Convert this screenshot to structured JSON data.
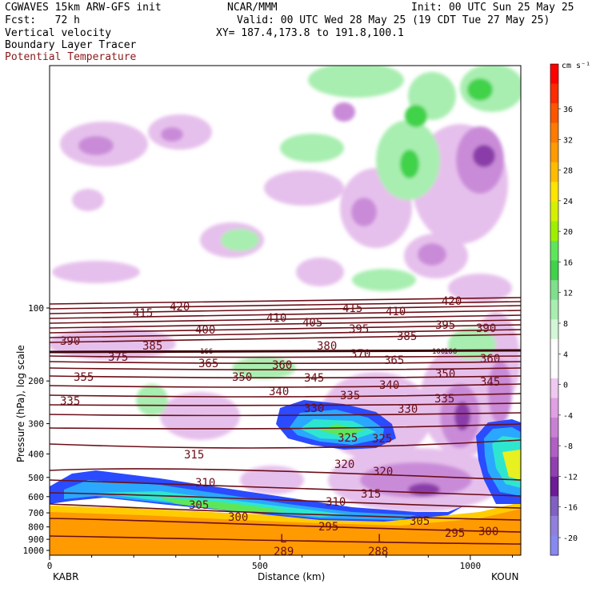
{
  "header": {
    "model": "CGWAVES 15km ARW-GFS init",
    "org": "NCAR/MMM",
    "init": "Init: 00 UTC Sun 25 May 25",
    "fcst": "Fcst:   72 h",
    "valid": "Valid: 00 UTC Wed 28 May 25 (19 CDT Tue 27 May 25)",
    "xy": "XY= 187.4,173.8 to 191.8,100.1",
    "field1": "Vertical velocity",
    "field2": "Boundary Layer Tracer",
    "field3": "Potential Temperature",
    "field3_color": "#8b1a1a"
  },
  "chart_data": {
    "type": "heatmap",
    "xlabel": "Distance (km)",
    "ylabel": "Pressure (hPa), log scale",
    "x_ticks": [
      0,
      500,
      1000
    ],
    "xlim": [
      0,
      1120
    ],
    "y_ticks": [
      100,
      200,
      300,
      400,
      500,
      600,
      700,
      800,
      900,
      1000
    ],
    "y_scale": "log",
    "left_station": "KABR",
    "right_station": "KOUN",
    "colorbar": {
      "unit": "cm s⁻¹",
      "labels": [
        36,
        32,
        28,
        24,
        20,
        16,
        12,
        8,
        4,
        0,
        -4,
        -8,
        -12,
        -16,
        -20
      ],
      "colors": [
        "#ff0000",
        "#ff2a00",
        "#ff5500",
        "#ff7a00",
        "#ff9a00",
        "#ffbb00",
        "#ffe400",
        "#d4f000",
        "#9ef000",
        "#5ee65a",
        "#40d24a",
        "#7fe08c",
        "#a8eeb0",
        "#d2f6d6",
        "#ffffff",
        "#ffffff",
        "#f0c8f0",
        "#e0a0e4",
        "#c880d4",
        "#b060c4",
        "#9040b0",
        "#6c1c98",
        "#8060c0",
        "#9080dc",
        "#8888f0"
      ]
    },
    "theta_contour_labels": [
      "420",
      "415",
      "420",
      "415",
      "410",
      "410",
      "405",
      "400",
      "395",
      "385",
      "395",
      "390",
      "390",
      "385",
      "380",
      "370",
      "365",
      "360",
      "375",
      "365",
      "360",
      "355",
      "350",
      "345",
      "350",
      "345",
      "340",
      "340",
      "335",
      "335",
      "335",
      "330",
      "330",
      "325",
      "325",
      "320",
      "320",
      "315",
      "315",
      "310",
      "310",
      "305",
      "305",
      "300",
      "300",
      "295",
      "295",
      "289",
      "288"
    ],
    "low_markers": [
      "L",
      "L"
    ],
    "boundary_layer_tracer_markers": [
      "166",
      "100",
      "166"
    ]
  }
}
